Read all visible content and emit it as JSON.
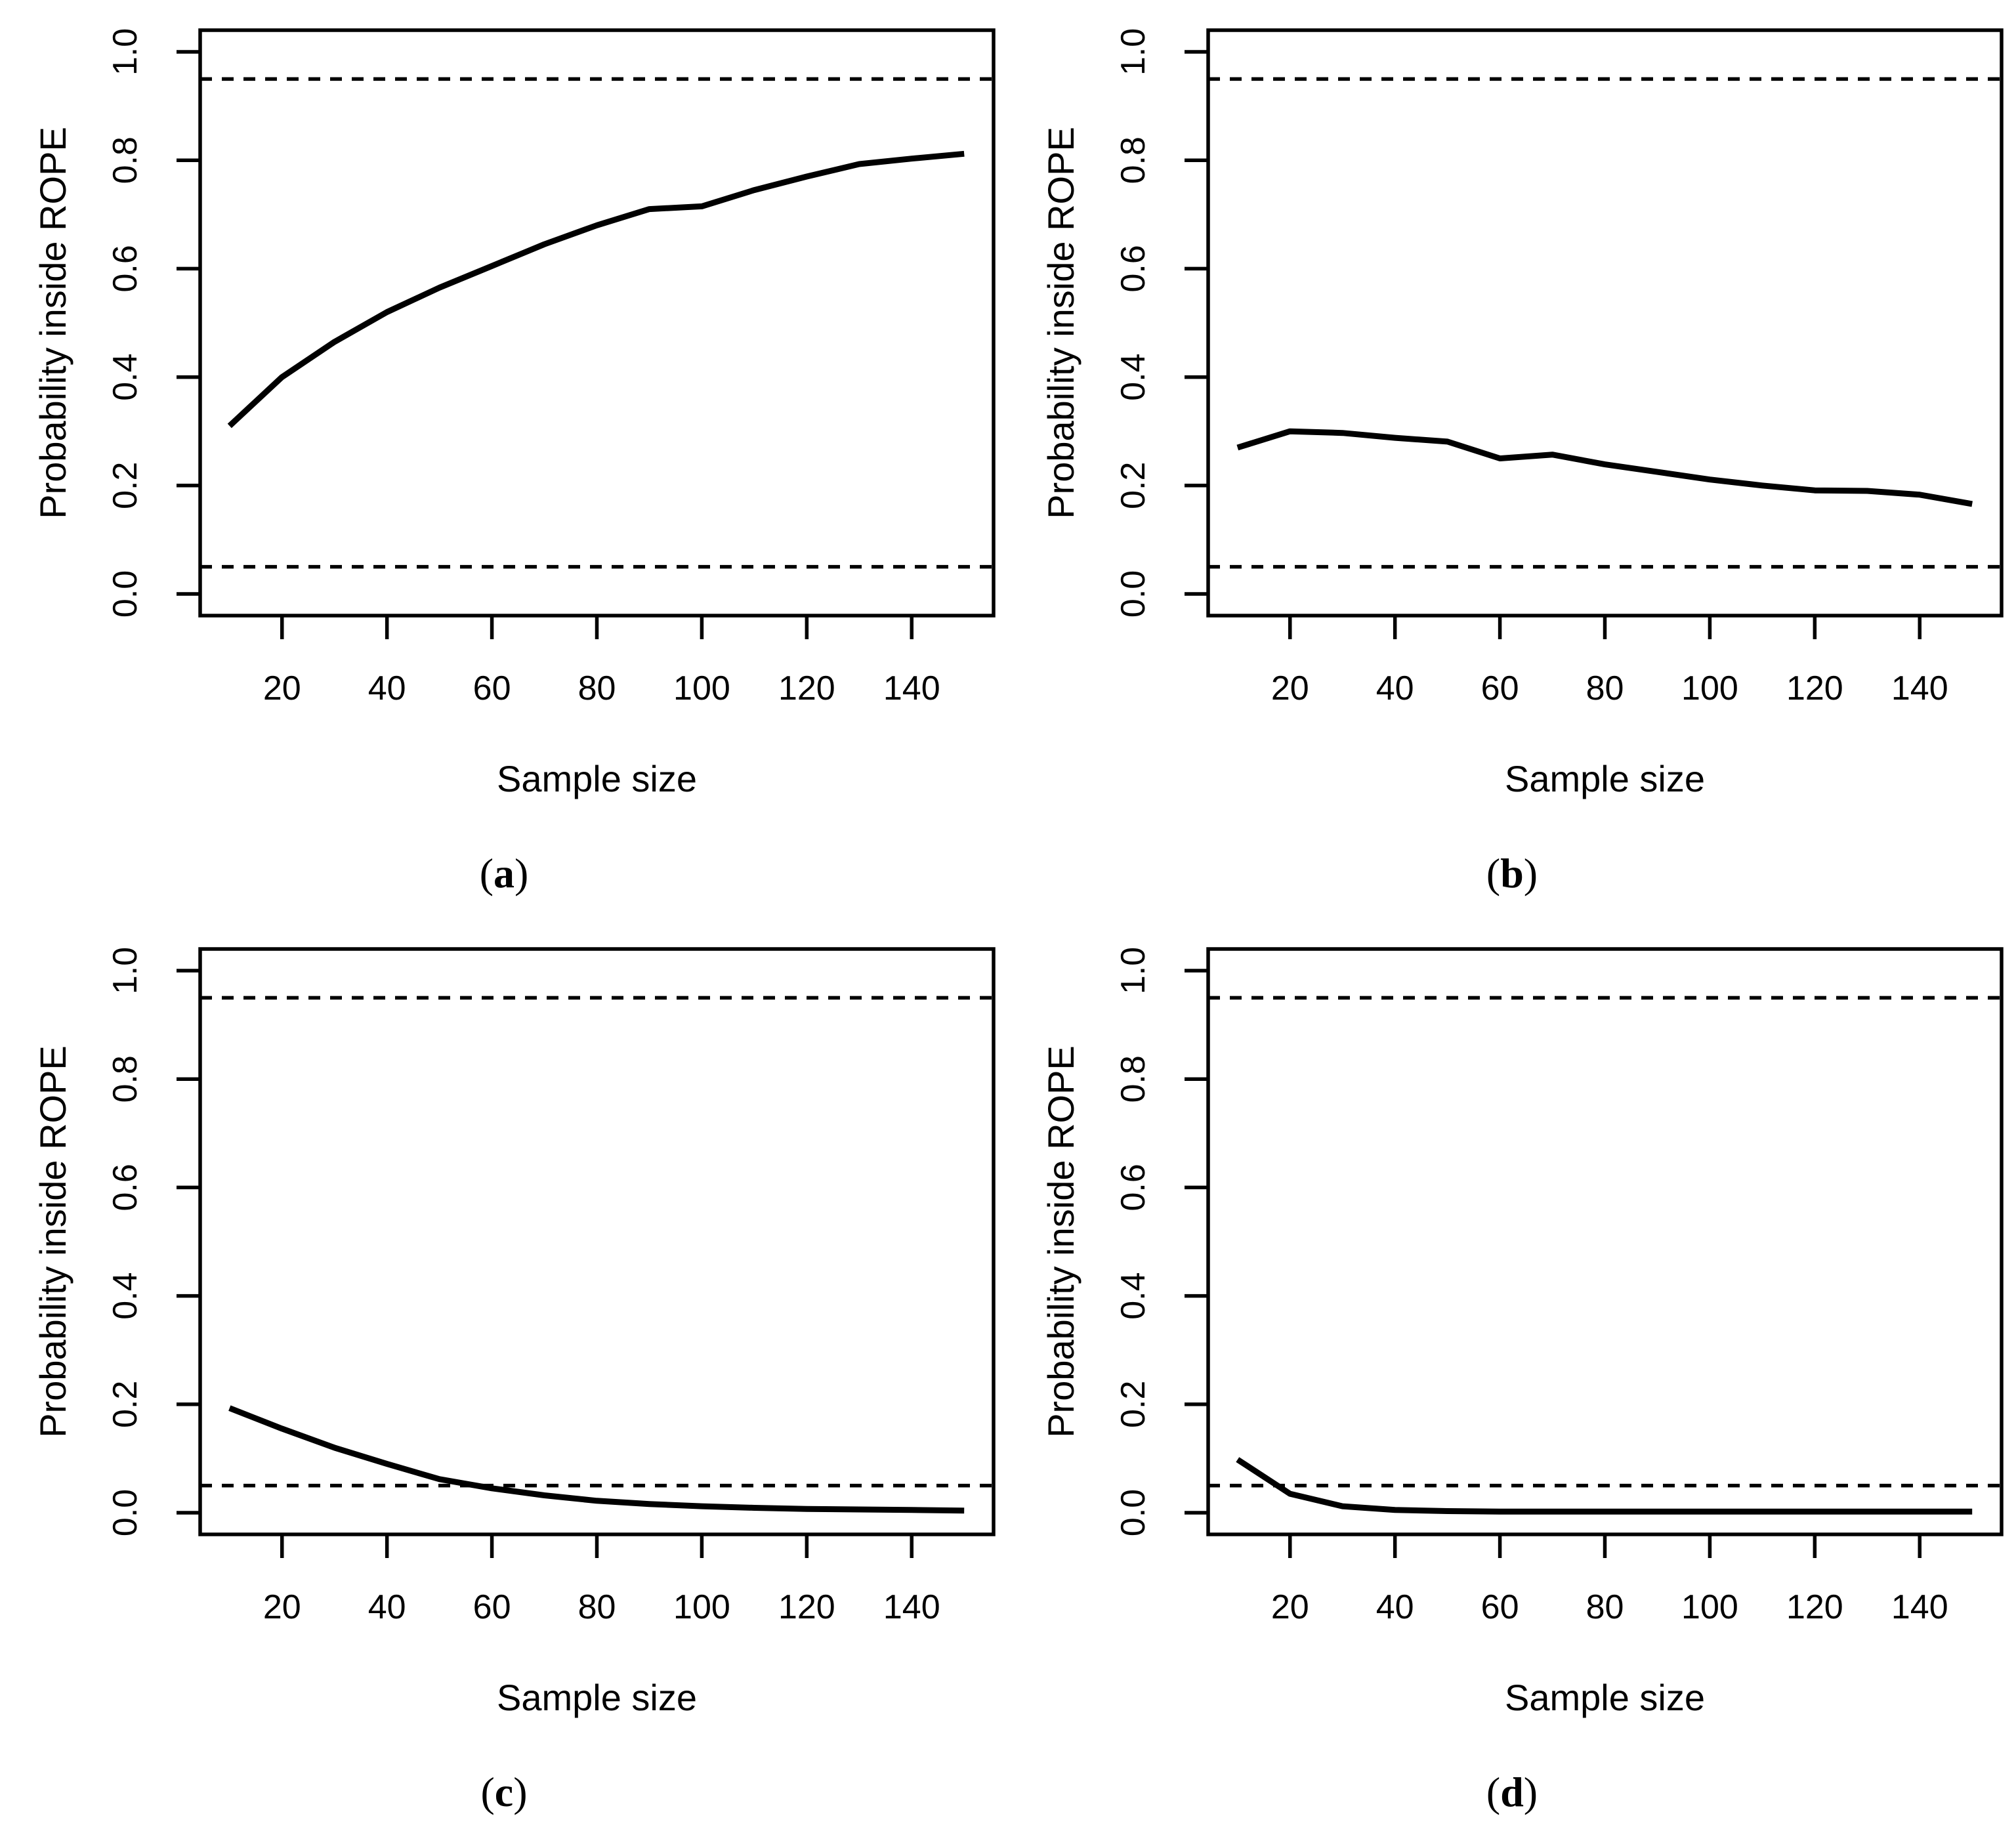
{
  "page": {
    "background": "#ffffff",
    "foreground": "#000000"
  },
  "chart_data": [
    {
      "type": "line",
      "panel_label": "a",
      "title": "",
      "xlabel": "Sample size",
      "ylabel": "Probability inside ROPE",
      "x": [
        10,
        20,
        30,
        40,
        50,
        60,
        70,
        80,
        90,
        100,
        110,
        120,
        130,
        140,
        150
      ],
      "y": [
        0.31,
        0.4,
        0.465,
        0.52,
        0.565,
        0.605,
        0.645,
        0.68,
        0.71,
        0.715,
        0.745,
        0.77,
        0.793,
        0.803,
        0.812
      ],
      "reference_lines": {
        "upper": 0.95,
        "lower": 0.05,
        "style": "dashed"
      },
      "xticks": [
        20,
        40,
        60,
        80,
        100,
        120,
        140
      ],
      "xtick_labels": [
        "20",
        "40",
        "60",
        "80",
        "100",
        "120",
        "140"
      ],
      "yticks": [
        0.0,
        0.2,
        0.4,
        0.6,
        0.8,
        1.0
      ],
      "ytick_labels": [
        "0.0",
        "0.2",
        "0.4",
        "0.6",
        "0.8",
        "1.0"
      ],
      "xlim": [
        4.4,
        155.6
      ],
      "ylim": [
        -0.04,
        1.04
      ],
      "line_color": "#000000",
      "grid": false,
      "legend": null
    },
    {
      "type": "line",
      "panel_label": "b",
      "title": "",
      "xlabel": "Sample size",
      "ylabel": "Probability inside ROPE",
      "x": [
        10,
        20,
        30,
        40,
        50,
        60,
        70,
        80,
        90,
        100,
        110,
        120,
        130,
        140,
        150
      ],
      "y": [
        0.27,
        0.3,
        0.297,
        0.288,
        0.281,
        0.25,
        0.257,
        0.239,
        0.225,
        0.211,
        0.2,
        0.191,
        0.19,
        0.183,
        0.166
      ],
      "reference_lines": {
        "upper": 0.95,
        "lower": 0.05,
        "style": "dashed"
      },
      "xticks": [
        20,
        40,
        60,
        80,
        100,
        120,
        140
      ],
      "xtick_labels": [
        "20",
        "40",
        "60",
        "80",
        "100",
        "120",
        "140"
      ],
      "yticks": [
        0.0,
        0.2,
        0.4,
        0.6,
        0.8,
        1.0
      ],
      "ytick_labels": [
        "0.0",
        "0.2",
        "0.4",
        "0.6",
        "0.8",
        "1.0"
      ],
      "xlim": [
        4.4,
        155.6
      ],
      "ylim": [
        -0.04,
        1.04
      ],
      "line_color": "#000000",
      "grid": false,
      "legend": null
    },
    {
      "type": "line",
      "panel_label": "c",
      "title": "",
      "xlabel": "Sample size",
      "ylabel": "Probability inside ROPE",
      "x": [
        10,
        20,
        30,
        40,
        50,
        60,
        70,
        80,
        90,
        100,
        110,
        120,
        130,
        140,
        150
      ],
      "y": [
        0.193,
        0.155,
        0.12,
        0.09,
        0.062,
        0.045,
        0.032,
        0.022,
        0.016,
        0.012,
        0.009,
        0.007,
        0.006,
        0.005,
        0.004
      ],
      "reference_lines": {
        "upper": 0.95,
        "lower": 0.05,
        "style": "dashed"
      },
      "xticks": [
        20,
        40,
        60,
        80,
        100,
        120,
        140
      ],
      "xtick_labels": [
        "20",
        "40",
        "60",
        "80",
        "100",
        "120",
        "140"
      ],
      "yticks": [
        0.0,
        0.2,
        0.4,
        0.6,
        0.8,
        1.0
      ],
      "ytick_labels": [
        "0.0",
        "0.2",
        "0.4",
        "0.6",
        "0.8",
        "1.0"
      ],
      "xlim": [
        4.4,
        155.6
      ],
      "ylim": [
        -0.04,
        1.04
      ],
      "line_color": "#000000",
      "grid": false,
      "legend": null
    },
    {
      "type": "line",
      "panel_label": "d",
      "title": "",
      "xlabel": "Sample size",
      "ylabel": "Probability inside ROPE",
      "x": [
        10,
        20,
        30,
        40,
        50,
        60,
        70,
        80,
        90,
        100,
        110,
        120,
        130,
        140,
        150
      ],
      "y": [
        0.098,
        0.035,
        0.012,
        0.005,
        0.003,
        0.002,
        0.002,
        0.002,
        0.002,
        0.002,
        0.002,
        0.002,
        0.002,
        0.002,
        0.002
      ],
      "reference_lines": {
        "upper": 0.95,
        "lower": 0.05,
        "style": "dashed"
      },
      "xticks": [
        20,
        40,
        60,
        80,
        100,
        120,
        140
      ],
      "xtick_labels": [
        "20",
        "40",
        "60",
        "80",
        "100",
        "120",
        "140"
      ],
      "yticks": [
        0.0,
        0.2,
        0.4,
        0.6,
        0.8,
        1.0
      ],
      "ytick_labels": [
        "0.0",
        "0.2",
        "0.4",
        "0.6",
        "0.8",
        "1.0"
      ],
      "xlim": [
        4.4,
        155.6
      ],
      "ylim": [
        -0.04,
        1.04
      ],
      "line_color": "#000000",
      "grid": false,
      "legend": null
    }
  ]
}
